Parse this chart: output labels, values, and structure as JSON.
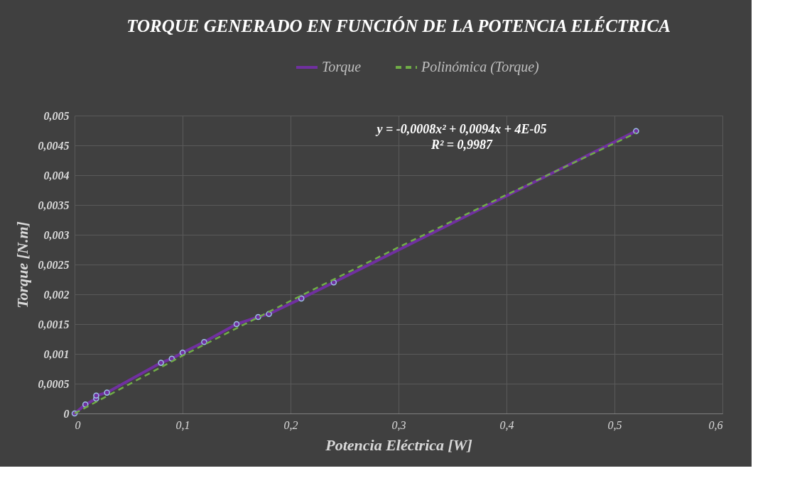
{
  "chart_data": {
    "type": "line",
    "title": "TORQUE GENERADO EN FUNCIÓN DE LA POTENCIA ELÉCTRICA",
    "xlabel": "Potencia Eléctrica [W]",
    "ylabel": "Torque [N.m]",
    "series": [
      {
        "name": "Torque",
        "color": "#7030a0",
        "marker": "circle",
        "line_style": "solid",
        "x": [
          0,
          0.01,
          0.02,
          0.02,
          0.03,
          0.08,
          0.09,
          0.1,
          0.12,
          0.15,
          0.17,
          0.18,
          0.21,
          0.24,
          0.52
        ],
        "values": [
          0,
          0.00015,
          0.00025,
          0.0003,
          0.00035,
          0.00085,
          0.00092,
          0.00102,
          0.0012,
          0.0015,
          0.00162,
          0.00167,
          0.00193,
          0.0022,
          0.00474
        ]
      },
      {
        "name": "Polinómica (Torque)",
        "color": "#70ad47",
        "marker": "none",
        "line_style": "dashed",
        "x": [
          0,
          0.1,
          0.2,
          0.3,
          0.4,
          0.52
        ],
        "values": [
          0,
          0.00097,
          0.00189,
          0.00279,
          0.00367,
          0.00471
        ]
      }
    ],
    "xlim": [
      0,
      0.6
    ],
    "xticks": [
      0,
      {
        "value": 0.1,
        "label": "0,1"
      },
      {
        "value": 0.2,
        "label": "0,2"
      },
      {
        "value": 0.3,
        "label": "0,3"
      },
      {
        "value": 0.4,
        "label": "0,4"
      },
      {
        "value": 0.5,
        "label": "0,5"
      },
      {
        "value": 0.6,
        "label": "0,6"
      }
    ],
    "ylim": [
      0,
      0.005
    ],
    "yticks": [
      0,
      {
        "value": 0.0005,
        "label": "0,0005"
      },
      {
        "value": 0.001,
        "label": "0,001"
      },
      {
        "value": 0.0015,
        "label": "0,0015"
      },
      {
        "value": 0.002,
        "label": "0,002"
      },
      {
        "value": 0.0025,
        "label": "0,0025"
      },
      {
        "value": 0.003,
        "label": "0,003"
      },
      {
        "value": 0.0035,
        "label": "0,0035"
      },
      {
        "value": 0.004,
        "label": "0,004"
      },
      {
        "value": 0.0045,
        "label": "0,0045"
      },
      {
        "value": 0.005,
        "label": "0,005"
      }
    ],
    "annotations": [
      "y = -0,0008x² + 0,0094x + 4E-05",
      "R² = 0,9987"
    ],
    "grid": true,
    "legend": "top"
  }
}
